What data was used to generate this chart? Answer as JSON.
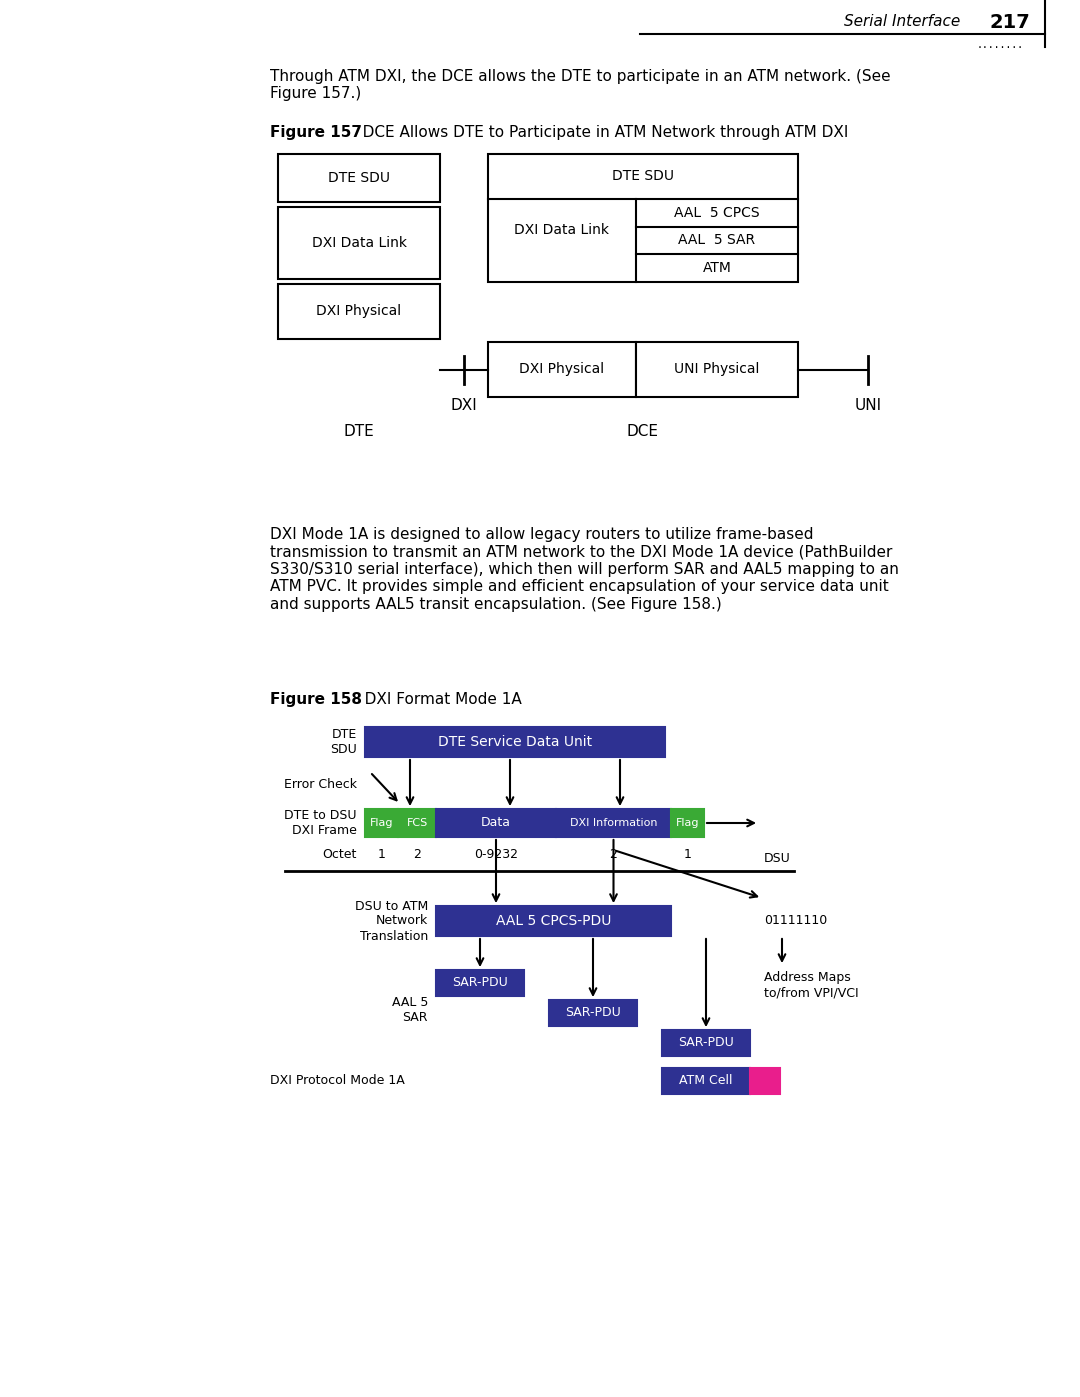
{
  "bg_color": "#ffffff",
  "page_number": "217",
  "page_label": "Serial Interface",
  "intro_text": "Through ATM DXI, the DCE allows the DTE to participate in an ATM network. (See\nFigure 157.)",
  "fig157_caption_bold": "Figure 157",
  "fig157_caption_rest": "   DCE Allows DTE to Participate in ATM Network through ATM DXI",
  "fig158_caption_bold": "Figure 158",
  "fig158_caption_rest": "   DXI Format Mode 1A",
  "body_text": "DXI Mode 1A is designed to allow legacy routers to utilize frame-based\ntransmission to transmit an ATM network to the DXI Mode 1A device (PathBuilder\nS330/S310 serial interface), which then will perform SAR and AAL5 mapping to an\nATM PVC. It provides simple and efficient encapsulation of your service data unit\nand supports AAL5 transit encapsulation. (See Figure 158.)",
  "dxi_label": "DXI",
  "uni_label": "UNI",
  "dte_label": "DTE",
  "dce_label": "DCE",
  "color_blue_dark": "#2e3192",
  "color_green": "#3aaa35",
  "color_magenta": "#e91e8c",
  "color_white": "#ffffff",
  "color_black": "#000000",
  "color_light_blue": "#add8e6"
}
